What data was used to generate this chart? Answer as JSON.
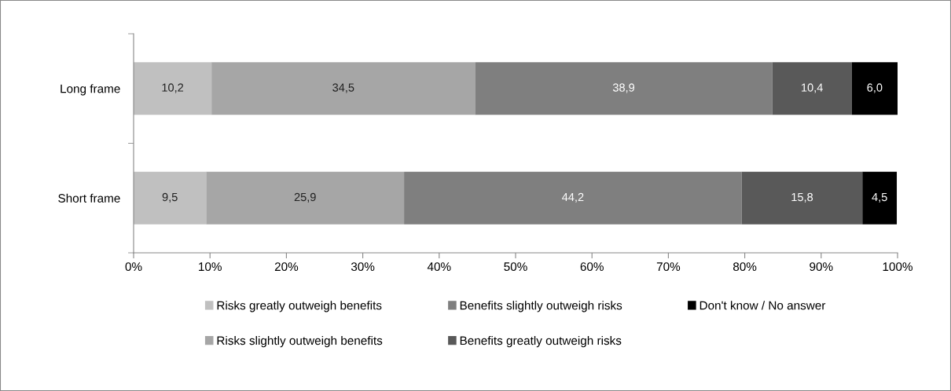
{
  "chart_data": {
    "type": "bar",
    "orientation": "horizontal",
    "stacked": true,
    "categories": [
      "Long frame",
      "Short frame"
    ],
    "series": [
      {
        "name": "Risks greatly outweigh benefits",
        "color": "#c0c0c0",
        "values": [
          10.2,
          9.5
        ],
        "value_labels": [
          "10,2",
          "9,5"
        ]
      },
      {
        "name": "Risks slightly outweigh benefits",
        "color": "#a6a6a6",
        "values": [
          34.5,
          25.9
        ],
        "value_labels": [
          "34,5",
          "25,9"
        ]
      },
      {
        "name": "Benefits slightly outweigh risks",
        "color": "#7f7f7f",
        "values": [
          38.9,
          44.2
        ],
        "value_labels": [
          "38,9",
          "44,2"
        ]
      },
      {
        "name": "Benefits greatly outweigh risks",
        "color": "#595959",
        "values": [
          10.4,
          15.8
        ],
        "value_labels": [
          "10,4",
          "15,8"
        ]
      },
      {
        "name": "Don't know / No answer",
        "color": "#000000",
        "values": [
          6.0,
          4.5
        ],
        "value_labels": [
          "6,0",
          "4,5"
        ]
      }
    ],
    "xlim": [
      0,
      100
    ],
    "xticks": [
      {
        "value": 0,
        "label": "0%"
      },
      {
        "value": 10,
        "label": "10%"
      },
      {
        "value": 20,
        "label": "20%"
      },
      {
        "value": 30,
        "label": "30%"
      },
      {
        "value": 40,
        "label": "40%"
      },
      {
        "value": 50,
        "label": "50%"
      },
      {
        "value": 60,
        "label": "60%"
      },
      {
        "value": 70,
        "label": "70%"
      },
      {
        "value": 80,
        "label": "80%"
      },
      {
        "value": 90,
        "label": "90%"
      },
      {
        "value": 100,
        "label": "100%"
      }
    ],
    "grid": false,
    "legend": "bottom"
  }
}
